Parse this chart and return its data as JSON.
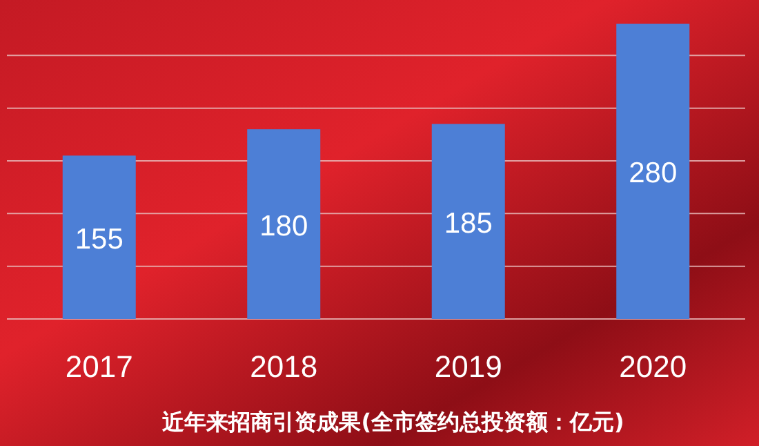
{
  "chart_data": {
    "type": "bar",
    "title": "近年来招商引资成果(全市签约总投资额：亿元)",
    "categories": [
      "2017",
      "2018",
      "2019",
      "2020"
    ],
    "values": [
      155,
      180,
      185,
      280
    ],
    "color": "#4d7fd6",
    "data_labels": true,
    "ylim": [
      0,
      300
    ],
    "yticks": [
      {
        "value": 0,
        "label": null
      },
      {
        "value": 50,
        "label": null
      },
      {
        "value": 100,
        "label": null
      },
      {
        "value": 150,
        "label": null
      },
      {
        "value": 200,
        "label": null
      },
      {
        "value": 250,
        "label": null
      }
    ],
    "tick_labels": "x",
    "grid": "y"
  }
}
